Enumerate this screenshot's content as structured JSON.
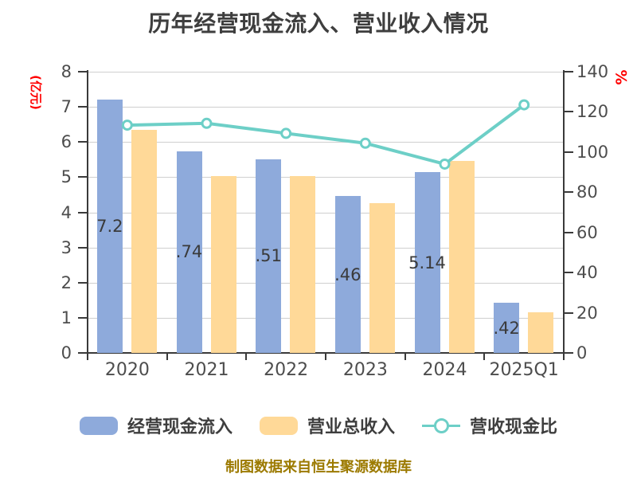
{
  "title": "历年经营现金流入、营业收入情况",
  "left_axis": {
    "unit_label": "(亿元)",
    "unit_color": "#ff0000",
    "ticks": [
      "0",
      "1",
      "2",
      "3",
      "4",
      "5",
      "6",
      "7",
      "8"
    ]
  },
  "right_axis": {
    "unit_label": "%",
    "unit_color": "#ff0000",
    "ticks": [
      "0",
      "20",
      "40",
      "60",
      "80",
      "100",
      "120",
      "140"
    ]
  },
  "legend": {
    "items": [
      {
        "label": "经营现金流入",
        "swatch": "bar",
        "color": "#8eaadb"
      },
      {
        "label": "营业总收入",
        "swatch": "bar",
        "color": "#ffd998"
      },
      {
        "label": "营收现金比",
        "swatch": "line-marker",
        "color": "#6dcfc7"
      }
    ]
  },
  "footer": {
    "source_note": "制图数据来自恒生聚源数据库"
  },
  "colors": {
    "bar_blue": "#8eaadb",
    "bar_orange": "#ffd998",
    "line_teal": "#6dcfc7",
    "marker_fill": "#ffffff",
    "grid": "#cfcfcf",
    "axis": "#3a3a3a",
    "tick_text": "#4d4d4d",
    "title_text": "#3e3e3e",
    "bar_label_text": "#3a3a3a",
    "accent_red": "#ff0000",
    "footer_gold": "#9c7a00"
  },
  "chart_data": {
    "type": "bar",
    "subtype": "grouped-bars-with-line",
    "title": "历年经营现金流入、营业收入情况",
    "categories": [
      "2020",
      "2021",
      "2022",
      "2023",
      "2024",
      "2025Q1"
    ],
    "series": [
      {
        "name": "经营现金流入",
        "type": "bar",
        "axis": "left",
        "color": "#8eaadb",
        "values": [
          7.2,
          5.74,
          5.51,
          4.46,
          5.14,
          1.42
        ],
        "labels_shown": [
          "7.2",
          ".74",
          ".51",
          ".46",
          "5.14",
          ".42"
        ]
      },
      {
        "name": "营业总收入",
        "type": "bar",
        "axis": "left",
        "color": "#ffd998",
        "values": [
          6.35,
          5.02,
          5.04,
          4.27,
          5.47,
          1.15
        ],
        "labels_shown": [
          "",
          "",
          "",
          "",
          "",
          ""
        ]
      },
      {
        "name": "营收现金比",
        "type": "line",
        "axis": "right",
        "color": "#6dcfc7",
        "values": [
          113.4,
          114.3,
          109.3,
          104.4,
          94.0,
          123.5
        ]
      }
    ],
    "left_ylabel": "(亿元)",
    "right_ylabel": "%",
    "left_ylim": [
      0,
      8
    ],
    "right_ylim": [
      0,
      140
    ],
    "grid": true,
    "legend_position": "bottom"
  }
}
